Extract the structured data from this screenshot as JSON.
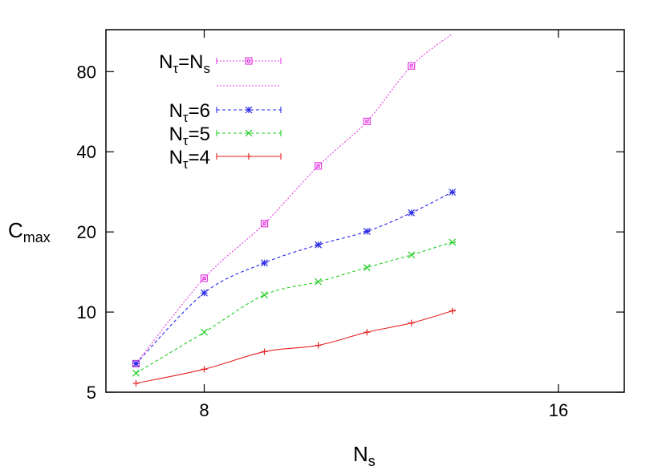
{
  "chart_data": {
    "type": "line",
    "xlabel": "N",
    "xlabel_sub": "s",
    "ylabel": "C",
    "ylabel_sub": "max",
    "x_scale": "log",
    "y_scale": "log",
    "xlim": [
      6.6,
      18.2
    ],
    "ylim": [
      5,
      115
    ],
    "x_ticks": [
      8,
      16
    ],
    "x_tick_labels": [
      "8",
      "16"
    ],
    "y_ticks": [
      5,
      10,
      20,
      40,
      80
    ],
    "y_tick_labels": [
      "5",
      "10",
      "20",
      "40",
      "80"
    ],
    "grid": false,
    "legend_position": "top-left",
    "x": [
      7,
      8,
      9,
      10,
      11,
      12,
      13
    ],
    "series": [
      {
        "name_main": "N",
        "name_sub": "τ",
        "name_tail": "=N",
        "name_tail_sub": "s",
        "color": "#e33ce0",
        "marker": "square",
        "line": "dotted",
        "values": [
          6.4,
          13.4,
          21.5,
          35.4,
          52.0,
          84.0,
          null
        ],
        "fit_endpoint": [
          13,
          111
        ]
      },
      {
        "name_main": "N",
        "name_sub": "τ",
        "name_tail": "=6",
        "name_tail_sub": "",
        "color": "#2a2ae6",
        "marker": "asterisk",
        "line": "dashed",
        "values": [
          6.4,
          11.8,
          15.3,
          17.9,
          20.1,
          23.6,
          28.2
        ],
        "fit_endpoint": [
          13,
          27.8
        ]
      },
      {
        "name_main": "N",
        "name_sub": "τ",
        "name_tail": "=5",
        "name_tail_sub": "",
        "color": "#22cc22",
        "marker": "x",
        "line": "dashed",
        "values": [
          5.9,
          8.4,
          11.6,
          13.0,
          14.7,
          16.4,
          18.3
        ],
        "fit_endpoint": [
          13,
          18.0
        ]
      },
      {
        "name_main": "N",
        "name_sub": "τ",
        "name_tail": "=4",
        "name_tail_sub": "",
        "color": "#e62222",
        "marker": "plus",
        "line": "solid",
        "values": [
          5.4,
          6.1,
          7.1,
          7.5,
          8.4,
          9.1,
          10.1
        ],
        "fit_endpoint": [
          13,
          10.1
        ]
      }
    ]
  }
}
